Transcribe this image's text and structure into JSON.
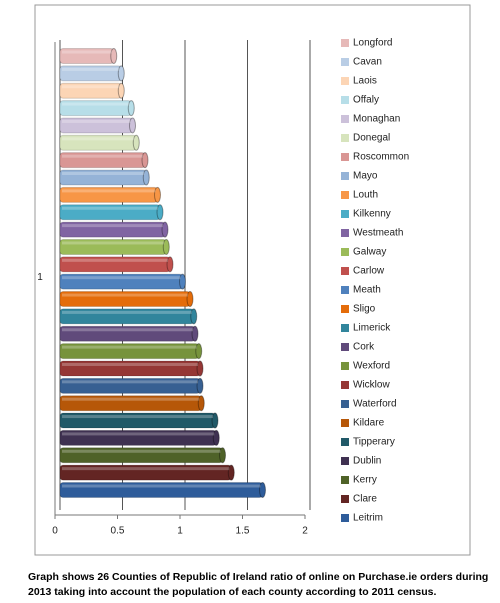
{
  "chart_data": {
    "type": "bar",
    "orientation": "horizontal",
    "categories": [
      "1"
    ],
    "xlim": [
      0,
      2
    ],
    "xticks": [
      0,
      0.5,
      1,
      1.5,
      2
    ],
    "grid": true,
    "legend": "right",
    "series": [
      {
        "name": "Longford",
        "color": "#e6b9b8",
        "values": [
          0.43
        ]
      },
      {
        "name": "Cavan",
        "color": "#b9cde5",
        "values": [
          0.49
        ]
      },
      {
        "name": "Laois",
        "color": "#fcd5b5",
        "values": [
          0.49
        ]
      },
      {
        "name": "Offaly",
        "color": "#b7dee8",
        "values": [
          0.57
        ]
      },
      {
        "name": "Monaghan",
        "color": "#ccc1da",
        "values": [
          0.58
        ]
      },
      {
        "name": "Donegal",
        "color": "#d7e4bd",
        "values": [
          0.61
        ]
      },
      {
        "name": "Roscommon",
        "color": "#d99694",
        "values": [
          0.68
        ]
      },
      {
        "name": "Mayo",
        "color": "#95b3d7",
        "values": [
          0.69
        ]
      },
      {
        "name": "Louth",
        "color": "#f79646",
        "values": [
          0.78
        ]
      },
      {
        "name": "Kilkenny",
        "color": "#4bacc6",
        "values": [
          0.8
        ]
      },
      {
        "name": "Westmeath",
        "color": "#8064a2",
        "values": [
          0.84
        ]
      },
      {
        "name": "Galway",
        "color": "#9bbb59",
        "values": [
          0.85
        ]
      },
      {
        "name": "Carlow",
        "color": "#c0504d",
        "values": [
          0.88
        ]
      },
      {
        "name": "Meath",
        "color": "#4f81bd",
        "values": [
          0.98
        ]
      },
      {
        "name": "Sligo",
        "color": "#e46c0a",
        "values": [
          1.04
        ]
      },
      {
        "name": "Limerick",
        "color": "#31859c",
        "values": [
          1.07
        ]
      },
      {
        "name": "Cork",
        "color": "#604a7b",
        "values": [
          1.08
        ]
      },
      {
        "name": "Wexford",
        "color": "#77933c",
        "values": [
          1.11
        ]
      },
      {
        "name": "Wicklow",
        "color": "#953735",
        "values": [
          1.12
        ]
      },
      {
        "name": "Waterford",
        "color": "#376092",
        "values": [
          1.12
        ]
      },
      {
        "name": "Kildare",
        "color": "#b65708",
        "values": [
          1.13
        ]
      },
      {
        "name": "Tipperary",
        "color": "#215968",
        "values": [
          1.24
        ]
      },
      {
        "name": "Dublin",
        "color": "#3f3151",
        "values": [
          1.25
        ]
      },
      {
        "name": "Kerry",
        "color": "#4f6228",
        "values": [
          1.3
        ]
      },
      {
        "name": "Clare",
        "color": "#632523",
        "values": [
          1.37
        ]
      },
      {
        "name": "Leitrim",
        "color": "#2e5c9a",
        "values": [
          1.62
        ]
      }
    ],
    "caption": "Graph shows 26 Counties of Republic of Ireland ratio of online on Purchase.ie orders during 2013 taking into account the population of each county according to 2011 census."
  }
}
